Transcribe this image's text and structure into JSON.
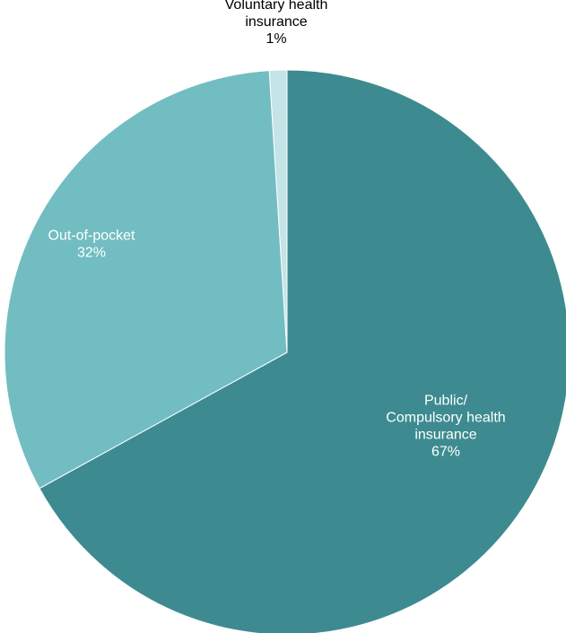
{
  "chart_data": {
    "type": "pie",
    "start_angle_deg": 0,
    "direction": "clockwise",
    "slices": [
      {
        "lines": [
          "Public/",
          "Compulsory health",
          "insurance"
        ],
        "value_label": "67%",
        "value": 67,
        "color": "#3d8b90",
        "label_color": "#ffffff"
      },
      {
        "lines": [
          "Out-of-pocket"
        ],
        "value_label": "32%",
        "value": 32,
        "color": "#72bdc2",
        "label_color": "#ffffff"
      },
      {
        "lines": [
          "Voluntary health",
          "insurance"
        ],
        "value_label": "1%",
        "value": 1,
        "color": "#c4e4e7",
        "label_color": "#000000"
      }
    ]
  }
}
